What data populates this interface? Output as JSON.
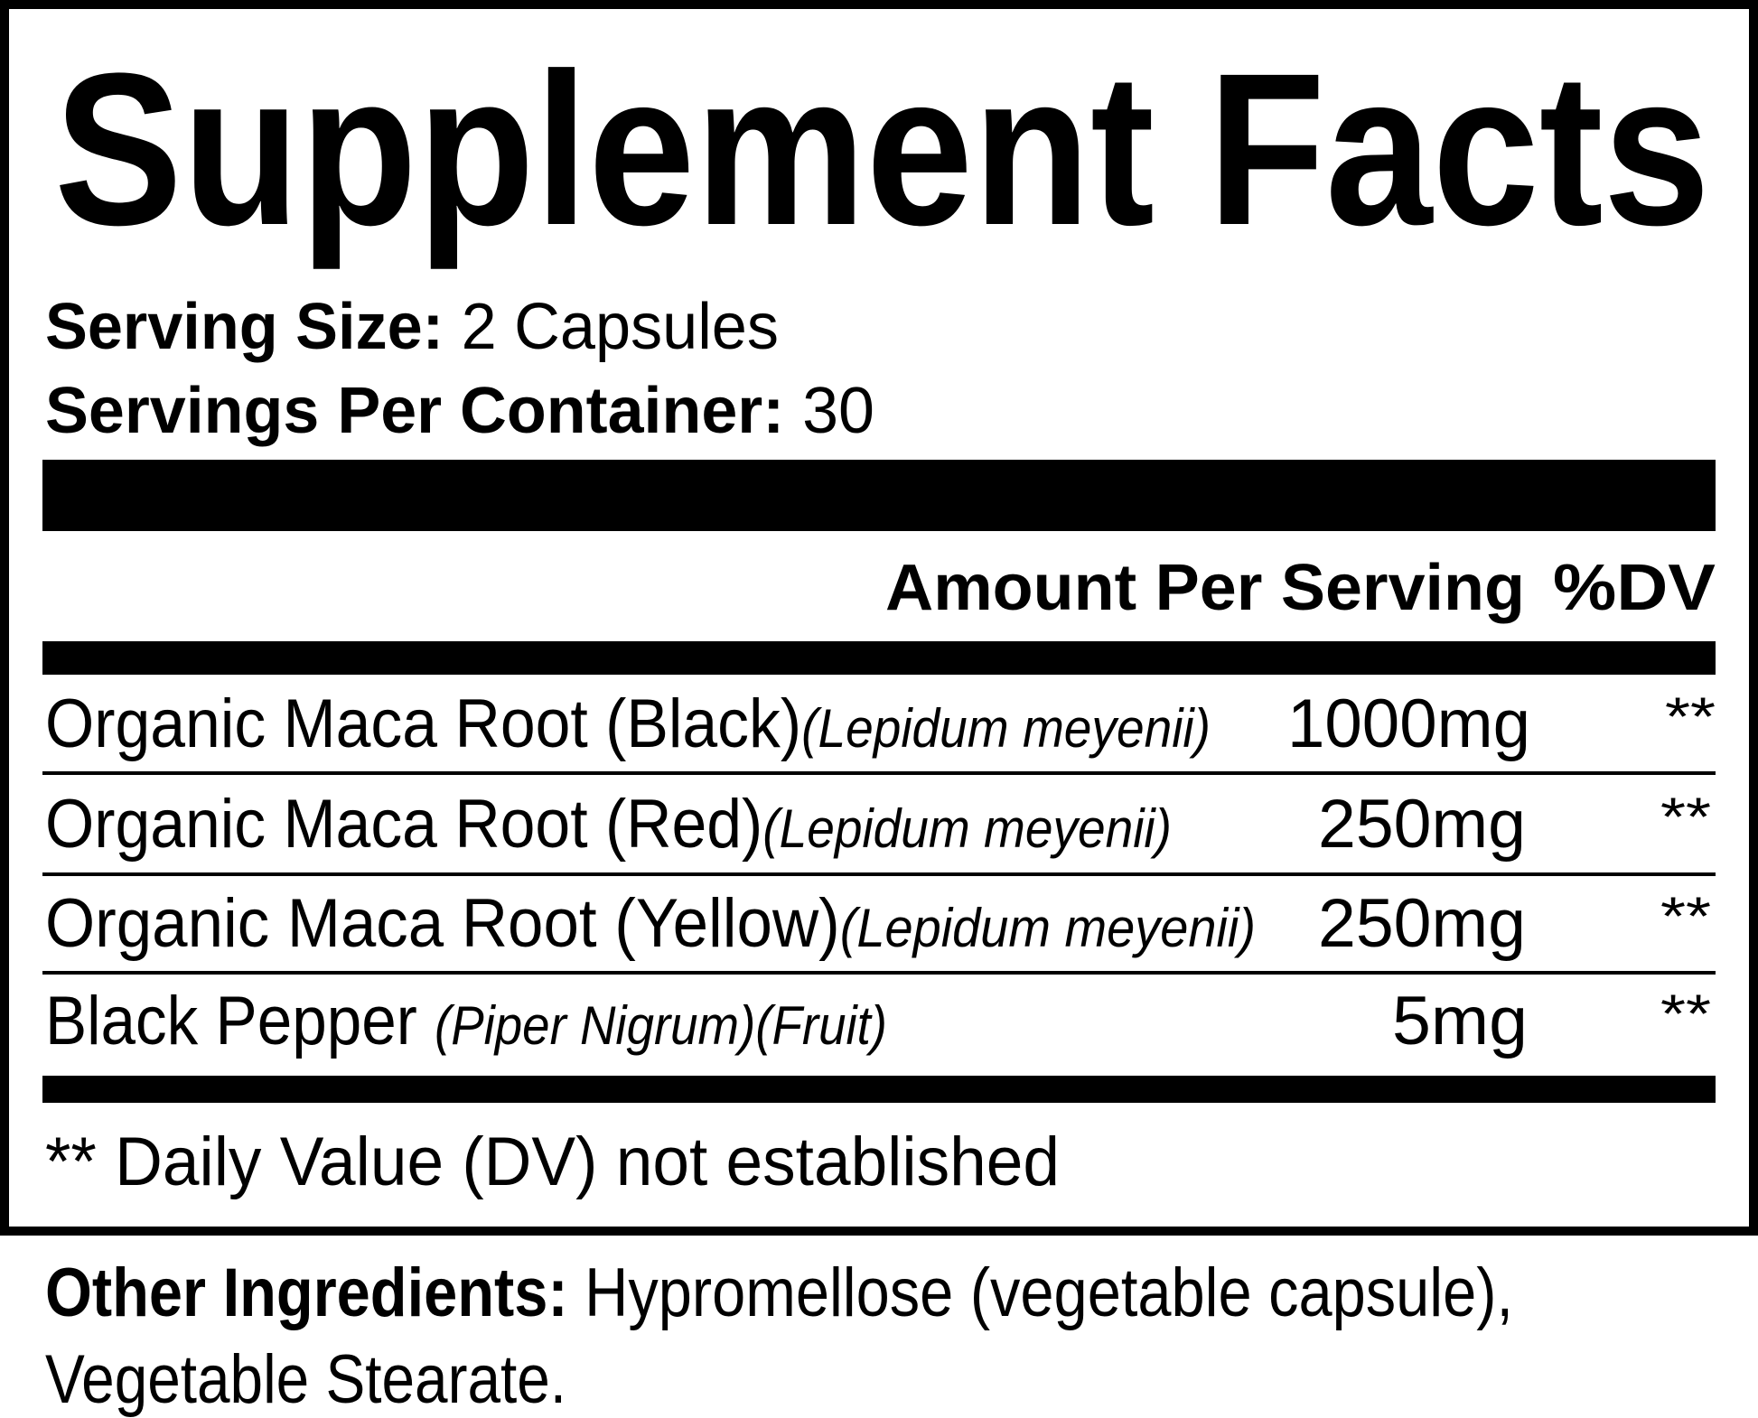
{
  "title": "Supplement Facts",
  "serving": {
    "size_label": "Serving Size:",
    "size_value": "2 Capsules",
    "per_container_label": "Servings Per Container:",
    "per_container_value": "30"
  },
  "header": {
    "amount": "Amount Per Serving",
    "dv": "%DV"
  },
  "ingredients": [
    {
      "name": "Organic Maca Root (Black)",
      "latin": "(Lepidum meyenii)",
      "amount": "1000mg",
      "dv": "**"
    },
    {
      "name": "Organic Maca Root (Red)",
      "latin": "(Lepidum meyenii)",
      "amount": "250mg",
      "dv": "**"
    },
    {
      "name": "Organic Maca Root (Yellow)",
      "latin": "(Lepidum meyenii)",
      "amount": "250mg",
      "dv": "**"
    },
    {
      "name": "Black Pepper ",
      "latin": "(Piper Nigrum)(Fruit)",
      "amount": "5mg",
      "dv": "**"
    }
  ],
  "footnote": "** Daily Value (DV) not established",
  "other": {
    "label": "Other Ingredients:",
    "line1": " Hypromellose (vegetable capsule),",
    "line2": "Vegetable Stearate."
  }
}
